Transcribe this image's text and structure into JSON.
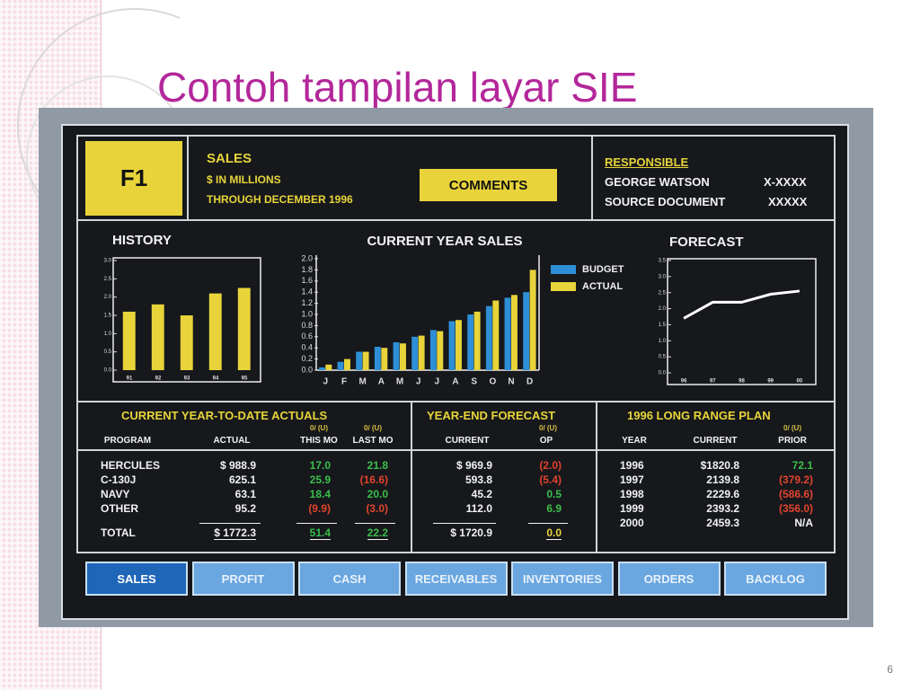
{
  "slide": {
    "title": "Contoh tampilan layar SIE",
    "page_number": "6"
  },
  "header": {
    "key": "F1",
    "title": "SALES",
    "units": "$ IN MILLIONS",
    "period": "THROUGH DECEMBER 1996",
    "comments_button": "COMMENTS",
    "responsible_label": "RESPONSIBLE",
    "responsible_name": "GEORGE WATSON",
    "responsible_phone": "X-XXXX",
    "source_label": "SOURCE DOCUMENT",
    "source_value": "XXXXX"
  },
  "chart_data": [
    {
      "type": "bar",
      "title": "HISTORY",
      "categories": [
        "91",
        "92",
        "93",
        "94",
        "95"
      ],
      "values": [
        1.6,
        1.8,
        1.5,
        2.1,
        2.25
      ],
      "color": "#e8d43a",
      "ylim": [
        0,
        3
      ],
      "yticks": [
        {
          "value": 0,
          "label": "0.0"
        },
        0.5,
        {
          "value": 1,
          "label": "1.0"
        },
        1.5,
        {
          "value": 2,
          "label": "2.0"
        },
        2.5,
        {
          "value": 3,
          "label": "3.0"
        }
      ]
    },
    {
      "type": "bar",
      "title": "CURRENT YEAR SALES",
      "categories": [
        "J",
        "F",
        "M",
        "A",
        "M",
        "J",
        "J",
        "A",
        "S",
        "O",
        "N",
        "D"
      ],
      "series": [
        {
          "name": "BUDGET",
          "color": "#2e8fd6",
          "values": [
            0.05,
            0.15,
            0.33,
            0.42,
            0.5,
            0.6,
            0.72,
            0.88,
            1.0,
            1.15,
            1.3,
            1.4
          ]
        },
        {
          "name": "ACTUAL",
          "color": "#e8d43a",
          "values": [
            0.1,
            0.2,
            0.33,
            0.4,
            0.48,
            0.62,
            0.7,
            0.9,
            1.05,
            1.25,
            1.35,
            1.8
          ]
        }
      ],
      "ylim": [
        0,
        2
      ],
      "yticks": [
        {
          "value": 0,
          "label": "0.0"
        },
        0.2,
        0.4,
        0.6,
        0.8,
        {
          "value": 1,
          "label": "1.0"
        },
        1.2,
        1.4,
        1.6,
        1.8,
        {
          "value": 2,
          "label": "2.0"
        }
      ],
      "legend": "right"
    },
    {
      "type": "line",
      "title": "FORECAST",
      "categories": [
        "96",
        "97",
        "98",
        "99",
        "00"
      ],
      "values": [
        1.7,
        2.2,
        2.2,
        2.45,
        2.55
      ],
      "color": "#ffffff",
      "ylim": [
        0,
        3.5
      ],
      "yticks": [
        {
          "value": 0,
          "label": "0.0"
        },
        0.5,
        {
          "value": 1,
          "label": "1.0"
        },
        1.5,
        {
          "value": 2,
          "label": "2.0"
        },
        2.5,
        {
          "value": 3,
          "label": "3.0"
        },
        3.5
      ]
    }
  ],
  "tables": [
    {
      "title": "CURRENT YEAR-TO-DATE ACTUALS",
      "variance_labels": [
        "0/ (U)",
        "0/ (U)"
      ],
      "columns": [
        "PROGRAM",
        "ACTUAL",
        "THIS MO",
        "LAST MO"
      ],
      "rows": [
        [
          "HERCULES",
          "$ 988.9",
          "17.0",
          "21.8"
        ],
        [
          "C-130J",
          "625.1",
          "25.9",
          "(16.6)"
        ],
        [
          "NAVY",
          "63.1",
          "18.4",
          "20.0"
        ],
        [
          "OTHER",
          "95.2",
          "(9.9)",
          "(3.0)"
        ]
      ],
      "total": [
        "TOTAL",
        "$ 1772.3",
        "51.4",
        "22.2"
      ]
    },
    {
      "title": "YEAR-END FORECAST",
      "variance_labels": [
        "0/ (U)"
      ],
      "columns": [
        "CURRENT",
        "OP"
      ],
      "rows": [
        [
          "$ 969.9",
          "(2.0)"
        ],
        [
          "593.8",
          "(5.4)"
        ],
        [
          "45.2",
          "0.5"
        ],
        [
          "112.0",
          "6.9"
        ]
      ],
      "total": [
        "$ 1720.9",
        "0.0"
      ]
    },
    {
      "title": "1996 LONG RANGE PLAN",
      "variance_labels": [
        "0/ (U)"
      ],
      "columns": [
        "YEAR",
        "CURRENT",
        "PRIOR"
      ],
      "rows": [
        [
          "1996",
          "$1820.8",
          "72.1"
        ],
        [
          "1997",
          "2139.8",
          "(379.2)"
        ],
        [
          "1998",
          "2229.6",
          "(586.6)"
        ],
        [
          "1999",
          "2393.2",
          "(356.0)"
        ],
        [
          "2000",
          "2459.3",
          "N/A"
        ]
      ]
    }
  ],
  "tabs": [
    "SALES",
    "PROFIT",
    "CASH",
    "RECEIVABLES",
    "INVENTORIES",
    "ORDERS",
    "BACKLOG"
  ]
}
